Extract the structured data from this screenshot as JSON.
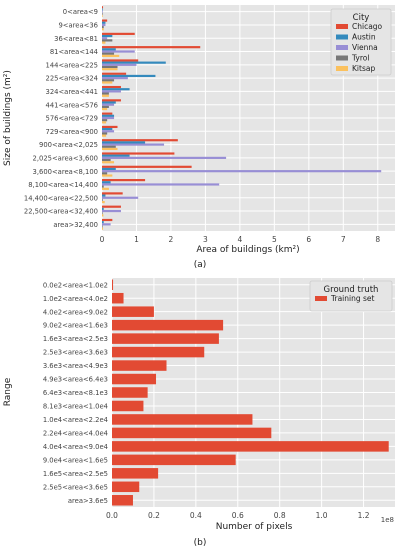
{
  "chart_data": [
    {
      "type": "bar",
      "orientation": "horizontal",
      "categories": [
        "0<area<9",
        "9<area<36",
        "36<area<81",
        "81<area<144",
        "144<area<225",
        "225<area<324",
        "324<area<441",
        "441<area<576",
        "576<area<729",
        "729<area<900",
        "900<area<2,025",
        "2,025<area<3,600",
        "3,600<area<8,100",
        "8,100<area<14,400",
        "14,400<area<22,500",
        "22,500<area<32,400",
        "area>32,400"
      ],
      "series": [
        {
          "name": "Chicago",
          "color": "#e24a33",
          "values": [
            0.03,
            0.15,
            0.95,
            2.85,
            1.05,
            0.7,
            0.55,
            0.55,
            0.3,
            0.45,
            2.2,
            2.1,
            2.6,
            1.25,
            0.6,
            0.55,
            0.3
          ]
        },
        {
          "name": "Austin",
          "color": "#348abd",
          "values": [
            0.02,
            0.1,
            0.3,
            0.4,
            1.85,
            1.55,
            0.8,
            0.4,
            0.35,
            0.3,
            1.25,
            0.8,
            0.4,
            0.25,
            0.1,
            0.05,
            0.05
          ]
        },
        {
          "name": "Vienna",
          "color": "#988ed5",
          "values": [
            0.02,
            0.1,
            0.15,
            0.95,
            1.0,
            0.75,
            0.55,
            0.35,
            0.35,
            0.35,
            1.8,
            3.6,
            8.1,
            3.4,
            1.05,
            0.55,
            0.25
          ]
        },
        {
          "name": "Tyrol",
          "color": "#777777",
          "values": [
            0.01,
            0.05,
            0.3,
            0.35,
            0.45,
            0.35,
            0.2,
            0.2,
            0.15,
            0.15,
            0.4,
            0.25,
            0.15,
            0.05,
            0.02,
            0.01,
            0.01
          ]
        },
        {
          "name": "Kitsap",
          "color": "#fbc15e",
          "values": [
            0.01,
            0.05,
            0.1,
            0.5,
            0.45,
            0.3,
            0.2,
            0.15,
            0.12,
            0.12,
            0.45,
            0.35,
            0.3,
            0.2,
            0.08,
            0.04,
            0.03
          ]
        }
      ],
      "xlabel": "Area of buildings (km²)",
      "ylabel": "Size of buildings (m²)",
      "xlim": [
        0,
        8.5
      ],
      "xticks": [
        "0",
        "1",
        "2",
        "3",
        "4",
        "5",
        "6",
        "7",
        "8"
      ],
      "legend_title": "City",
      "legend_position": "top-right",
      "grid": true,
      "caption": "(a)"
    },
    {
      "type": "bar",
      "orientation": "horizontal",
      "categories": [
        "0.0e2<area<1.0e2",
        "1.0e2<area<4.0e2",
        "4.0e2<area<9.0e2",
        "9.0e2<area<1.6e3",
        "1.6e3<area<2.5e3",
        "2.5e3<area<3.6e3",
        "3.6e3<area<4.9e3",
        "4.9e3<area<6.4e3",
        "6.4e3<area<8.1e3",
        "8.1e3<area<1.0e4",
        "1.0e4<area<2.2e4",
        "2.2e4<area<4.0e4",
        "4.0e4<area<9.0e4",
        "9.0e4<area<1.6e5",
        "1.6e5<area<2.5e5",
        "2.5e5<area<3.6e5",
        "area>3.6e5"
      ],
      "series": [
        {
          "name": "Training set",
          "color": "#e24a33",
          "values": [
            0.005,
            0.055,
            0.2,
            0.53,
            0.51,
            0.44,
            0.26,
            0.21,
            0.17,
            0.15,
            0.67,
            0.76,
            1.32,
            0.59,
            0.22,
            0.13,
            0.1
          ]
        }
      ],
      "xlabel": "Number of pixels",
      "ylabel": "Range",
      "xlim": [
        0,
        1.35
      ],
      "xticks": [
        "0.0",
        "0.2",
        "0.4",
        "0.6",
        "0.8",
        "1.0",
        "1.2"
      ],
      "x_multiplier": "1e8",
      "legend_title": "Ground truth",
      "legend_position": "top-right",
      "grid": true,
      "caption": "(b)"
    }
  ]
}
